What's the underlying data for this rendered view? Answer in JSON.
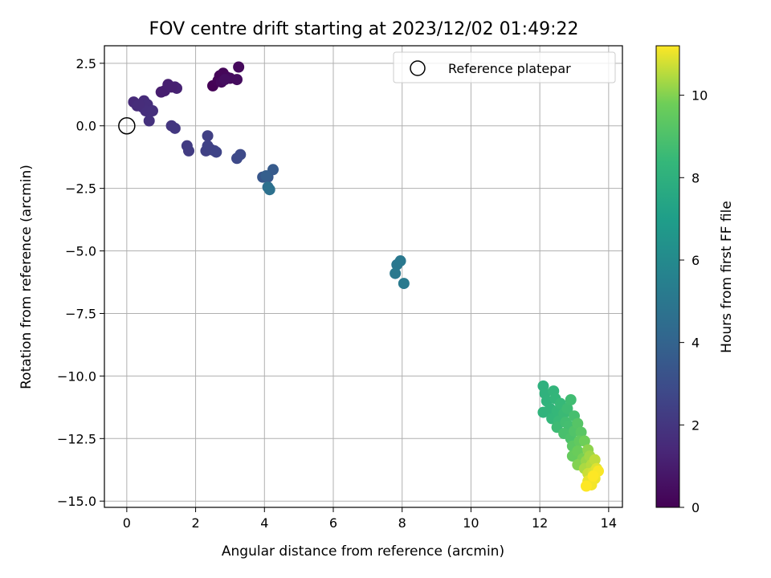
{
  "chart_data": {
    "type": "scatter",
    "title": "FOV centre drift starting at 2023/12/02 01:49:22",
    "xlabel": "Angular distance from reference (arcmin)",
    "ylabel": "Rotation from reference (arcmin)",
    "xlim": [
      -0.65,
      14.4
    ],
    "ylim": [
      -15.25,
      3.2
    ],
    "xticks": [
      "0",
      "2",
      "4",
      "6",
      "8",
      "10",
      "12",
      "14"
    ],
    "yticks": [
      "2.5",
      "0.0",
      "−2.5",
      "−5.0",
      "−7.5",
      "−10.0",
      "−12.5",
      "−15.0"
    ],
    "grid": true,
    "legend": {
      "position": "top-right",
      "label": "Reference platepar"
    },
    "reference_point": {
      "x": 0,
      "y": 0
    },
    "colorbar": {
      "label": "Hours from first FF file",
      "range": [
        0,
        11.2
      ],
      "ticks": [
        "0",
        "2",
        "4",
        "6",
        "8",
        "10"
      ],
      "colormap": "viridis"
    },
    "points": [
      {
        "x": 2.5,
        "y": 1.6,
        "t": 0.05
      },
      {
        "x": 2.65,
        "y": 1.8,
        "t": 0.1
      },
      {
        "x": 2.7,
        "y": 2.0,
        "t": 0.15
      },
      {
        "x": 2.8,
        "y": 2.1,
        "t": 0.2
      },
      {
        "x": 2.9,
        "y": 1.95,
        "t": 0.25
      },
      {
        "x": 2.75,
        "y": 1.75,
        "t": 0.3
      },
      {
        "x": 3.0,
        "y": 1.9,
        "t": 0.35
      },
      {
        "x": 3.2,
        "y": 1.85,
        "t": 0.4
      },
      {
        "x": 3.25,
        "y": 2.35,
        "t": 0.3
      },
      {
        "x": 2.85,
        "y": 1.85,
        "t": 0.45
      },
      {
        "x": 1.0,
        "y": 1.35,
        "t": 1.0
      },
      {
        "x": 1.1,
        "y": 1.4,
        "t": 1.05
      },
      {
        "x": 1.2,
        "y": 1.65,
        "t": 1.1
      },
      {
        "x": 1.4,
        "y": 1.55,
        "t": 1.15
      },
      {
        "x": 1.45,
        "y": 1.5,
        "t": 1.2
      },
      {
        "x": 1.3,
        "y": 1.55,
        "t": 1.1
      },
      {
        "x": 0.2,
        "y": 0.95,
        "t": 1.5
      },
      {
        "x": 0.3,
        "y": 0.8,
        "t": 1.55
      },
      {
        "x": 0.45,
        "y": 0.75,
        "t": 1.6
      },
      {
        "x": 0.5,
        "y": 1.0,
        "t": 1.55
      },
      {
        "x": 0.6,
        "y": 0.85,
        "t": 1.65
      },
      {
        "x": 0.55,
        "y": 0.6,
        "t": 1.7
      },
      {
        "x": 0.75,
        "y": 0.6,
        "t": 1.75
      },
      {
        "x": 0.65,
        "y": 0.2,
        "t": 1.8
      },
      {
        "x": 0.35,
        "y": 0.85,
        "t": 1.6
      },
      {
        "x": 1.3,
        "y": 0.0,
        "t": 2.0
      },
      {
        "x": 1.4,
        "y": -0.1,
        "t": 2.05
      },
      {
        "x": 1.75,
        "y": -0.8,
        "t": 2.2
      },
      {
        "x": 1.8,
        "y": -1.0,
        "t": 2.25
      },
      {
        "x": 2.35,
        "y": -0.4,
        "t": 2.4
      },
      {
        "x": 2.3,
        "y": -1.0,
        "t": 2.45
      },
      {
        "x": 2.45,
        "y": -0.95,
        "t": 2.5
      },
      {
        "x": 2.55,
        "y": -1.0,
        "t": 2.55
      },
      {
        "x": 2.6,
        "y": -1.05,
        "t": 2.6
      },
      {
        "x": 2.35,
        "y": -0.8,
        "t": 2.5
      },
      {
        "x": 3.2,
        "y": -1.3,
        "t": 2.8
      },
      {
        "x": 3.3,
        "y": -1.15,
        "t": 2.85
      },
      {
        "x": 3.95,
        "y": -2.05,
        "t": 3.4
      },
      {
        "x": 4.1,
        "y": -2.05,
        "t": 3.5
      },
      {
        "x": 4.25,
        "y": -1.75,
        "t": 3.6
      },
      {
        "x": 4.05,
        "y": -2.0,
        "t": 3.8
      },
      {
        "x": 4.1,
        "y": -2.45,
        "t": 4.6
      },
      {
        "x": 4.15,
        "y": -2.55,
        "t": 4.7
      },
      {
        "x": 7.85,
        "y": -5.55,
        "t": 5.0
      },
      {
        "x": 7.95,
        "y": -5.4,
        "t": 5.05
      },
      {
        "x": 7.8,
        "y": -5.9,
        "t": 5.1
      },
      {
        "x": 8.05,
        "y": -6.3,
        "t": 5.15
      },
      {
        "x": 12.1,
        "y": -10.4,
        "t": 8.0
      },
      {
        "x": 12.15,
        "y": -10.7,
        "t": 8.05
      },
      {
        "x": 12.2,
        "y": -11.0,
        "t": 8.1
      },
      {
        "x": 12.1,
        "y": -11.45,
        "t": 8.15
      },
      {
        "x": 12.3,
        "y": -11.3,
        "t": 8.2
      },
      {
        "x": 12.4,
        "y": -10.6,
        "t": 8.25
      },
      {
        "x": 12.45,
        "y": -10.9,
        "t": 8.3
      },
      {
        "x": 12.35,
        "y": -11.7,
        "t": 8.35
      },
      {
        "x": 12.5,
        "y": -11.4,
        "t": 8.4
      },
      {
        "x": 12.6,
        "y": -11.1,
        "t": 8.45
      },
      {
        "x": 12.55,
        "y": -11.8,
        "t": 8.5
      },
      {
        "x": 12.7,
        "y": -11.5,
        "t": 8.55
      },
      {
        "x": 12.5,
        "y": -12.05,
        "t": 8.6
      },
      {
        "x": 12.8,
        "y": -11.3,
        "t": 8.65
      },
      {
        "x": 12.9,
        "y": -10.95,
        "t": 8.7
      },
      {
        "x": 12.75,
        "y": -11.85,
        "t": 8.75
      },
      {
        "x": 12.85,
        "y": -12.0,
        "t": 8.8
      },
      {
        "x": 13.0,
        "y": -11.6,
        "t": 8.85
      },
      {
        "x": 12.7,
        "y": -12.3,
        "t": 8.9
      },
      {
        "x": 12.9,
        "y": -12.5,
        "t": 9.0
      },
      {
        "x": 13.0,
        "y": -12.2,
        "t": 9.1
      },
      {
        "x": 13.1,
        "y": -11.9,
        "t": 9.2
      },
      {
        "x": 13.2,
        "y": -12.25,
        "t": 9.3
      },
      {
        "x": 12.95,
        "y": -12.8,
        "t": 9.35
      },
      {
        "x": 13.15,
        "y": -12.6,
        "t": 9.5
      },
      {
        "x": 12.95,
        "y": -13.2,
        "t": 9.6
      },
      {
        "x": 13.1,
        "y": -13.0,
        "t": 9.7
      },
      {
        "x": 13.3,
        "y": -12.6,
        "t": 9.8
      },
      {
        "x": 13.25,
        "y": -13.3,
        "t": 9.9
      },
      {
        "x": 13.1,
        "y": -13.55,
        "t": 10.0
      },
      {
        "x": 13.4,
        "y": -12.95,
        "t": 10.1
      },
      {
        "x": 13.35,
        "y": -13.4,
        "t": 10.2
      },
      {
        "x": 13.45,
        "y": -13.2,
        "t": 10.3
      },
      {
        "x": 13.3,
        "y": -13.7,
        "t": 10.4
      },
      {
        "x": 13.5,
        "y": -13.55,
        "t": 10.5
      },
      {
        "x": 13.6,
        "y": -13.35,
        "t": 10.6
      },
      {
        "x": 13.4,
        "y": -13.9,
        "t": 10.7
      },
      {
        "x": 13.55,
        "y": -13.85,
        "t": 10.8
      },
      {
        "x": 13.65,
        "y": -13.7,
        "t": 10.9
      },
      {
        "x": 13.4,
        "y": -14.2,
        "t": 11.0
      },
      {
        "x": 13.6,
        "y": -14.1,
        "t": 11.05
      },
      {
        "x": 13.5,
        "y": -14.35,
        "t": 11.1
      },
      {
        "x": 13.7,
        "y": -13.8,
        "t": 11.15
      },
      {
        "x": 13.35,
        "y": -14.4,
        "t": 11.2
      },
      {
        "x": 13.55,
        "y": -14.0,
        "t": 11.2
      }
    ]
  }
}
